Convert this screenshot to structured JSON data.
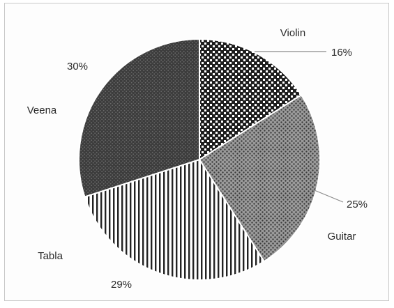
{
  "chart_data": {
    "type": "pie",
    "categories": [
      "Violin",
      "Guitar",
      "Tabla",
      "Veena"
    ],
    "values": [
      16,
      25,
      29,
      30
    ],
    "value_labels": [
      "16%",
      "25%",
      "29%",
      "30%"
    ],
    "start_at": "12 o'clock",
    "direction": "clockwise",
    "legend": "none",
    "patterns": [
      "checker",
      "diagonal-dots",
      "vertical-stripes",
      "dark-dots"
    ]
  }
}
